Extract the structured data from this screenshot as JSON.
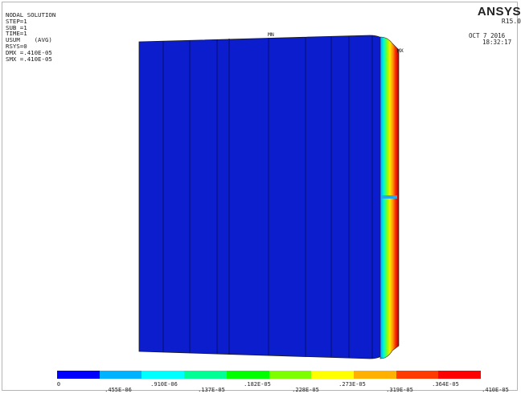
{
  "info": {
    "title": "NODAL SOLUTION",
    "lines": [
      "STEP=1",
      "SUB =1",
      "TIME=1",
      "USUM    (AVG)",
      "RSYS=0",
      "DMX =.410E-05",
      "SMX =.410E-05"
    ]
  },
  "brand": "ANSYS",
  "release": "R15.0",
  "date": "OCT  7 2016",
  "time": "18:32:17",
  "markers": {
    "min": "MN",
    "max": "MX"
  },
  "legend": {
    "colors": [
      "#0000ff",
      "#00b2ff",
      "#00ffff",
      "#00ff95",
      "#00ff00",
      "#7dff00",
      "#ffff00",
      "#ffb000",
      "#ff3b00",
      "#ff0000"
    ],
    "labels_top": [
      "0",
      ".910E-06",
      ".182E-05",
      ".273E-05",
      ".364E-05"
    ],
    "labels_bottom": [
      ".455E-06",
      ".137E-05",
      ".228E-05",
      ".319E-05",
      ".410E-05"
    ]
  }
}
